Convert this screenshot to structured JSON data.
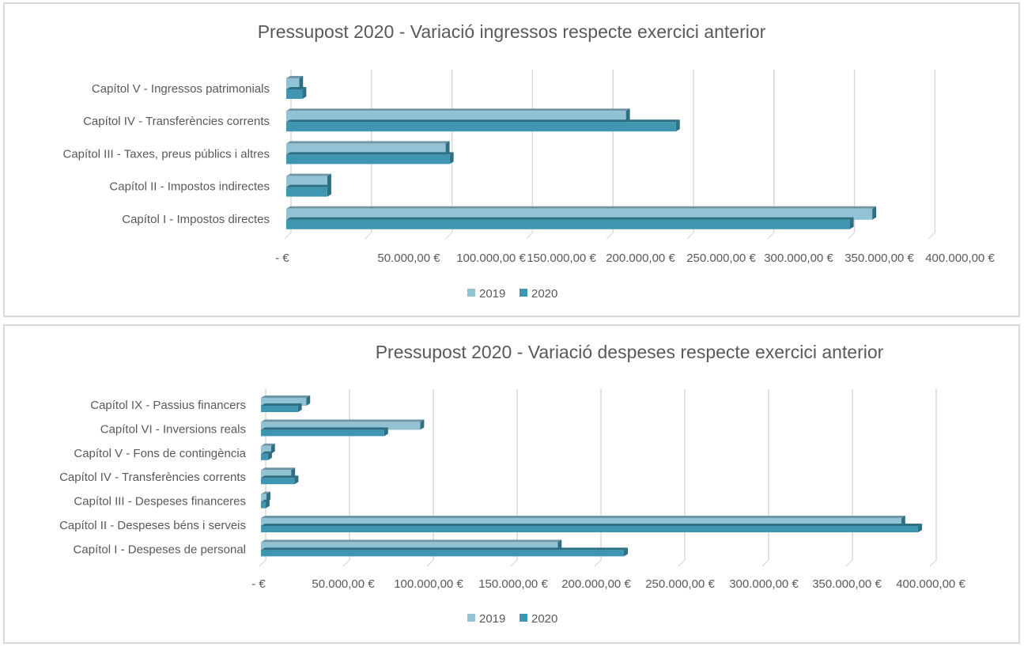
{
  "colors": {
    "series_2019": "#92c3d5",
    "series_2020": "#4096b0",
    "bar_top_edge_2019": "#6f96a5",
    "bar_top_edge_2020": "#2f6f83",
    "gridline": "#d9d9d9",
    "text": "#595959"
  },
  "chart_data": [
    {
      "type": "bar",
      "orientation": "horizontal",
      "style": "3d-clustered",
      "title": "Pressupost 2020 - Variació ingressos respecte exercici anterior",
      "xlabel": "",
      "ylabel": "",
      "xlim": [
        0,
        400000
      ],
      "grid": true,
      "legend": "bottom",
      "categories": [
        "Capítol V - Ingressos patrimonials",
        "Capítol IV - Transferències corrents",
        "Capítol III - Taxes, preus públics i altres",
        "Capítol II - Impostos indirectes",
        "Capítol I - Impostos directes"
      ],
      "x_tick_labels": [
        "-   €",
        "50.000,00 €",
        "100.000,00 €",
        "150.000,00 €",
        "200.000,00 €",
        "250.000,00 €",
        "300.000,00 €",
        "350.000,00 €",
        "400.000,00 €"
      ],
      "x_ticks": [
        0,
        50000,
        100000,
        150000,
        200000,
        250000,
        300000,
        350000,
        400000
      ],
      "series": [
        {
          "name": "2019",
          "values": [
            8000,
            211000,
            99000,
            25500,
            364000
          ]
        },
        {
          "name": "2020",
          "values": [
            10000,
            242000,
            101500,
            25500,
            350000
          ]
        }
      ]
    },
    {
      "type": "bar",
      "orientation": "horizontal",
      "style": "3d-clustered",
      "title": "Pressupost 2020 - Variació despeses respecte exercici anterior",
      "xlabel": "",
      "ylabel": "",
      "xlim": [
        0,
        400000
      ],
      "grid": true,
      "legend": "bottom",
      "categories": [
        "Capítol IX - Passius financers",
        "Capítol VI - Inversions reals",
        "Capítol V - Fons de contingència",
        "Capítol IV - Transferències corrents",
        "Capítol III - Despeses financeres",
        "Capítol II - Despeses béns i serveis",
        "Capítol I - Despeses de personal"
      ],
      "x_tick_labels": [
        "-   €",
        "50.000,00 €",
        "100.000,00 €",
        "150.000,00 €",
        "200.000,00 €",
        "250.000,00 €",
        "300.000,00 €",
        "350.000,00 €",
        "400.000,00 €"
      ],
      "x_ticks": [
        0,
        50000,
        100000,
        150000,
        200000,
        250000,
        300000,
        350000,
        400000
      ],
      "series": [
        {
          "name": "2019",
          "values": [
            27000,
            95000,
            6000,
            18000,
            3300,
            382000,
            177000
          ]
        },
        {
          "name": "2020",
          "values": [
            22000,
            73500,
            4200,
            20000,
            2800,
            392000,
            216500
          ]
        }
      ]
    }
  ]
}
